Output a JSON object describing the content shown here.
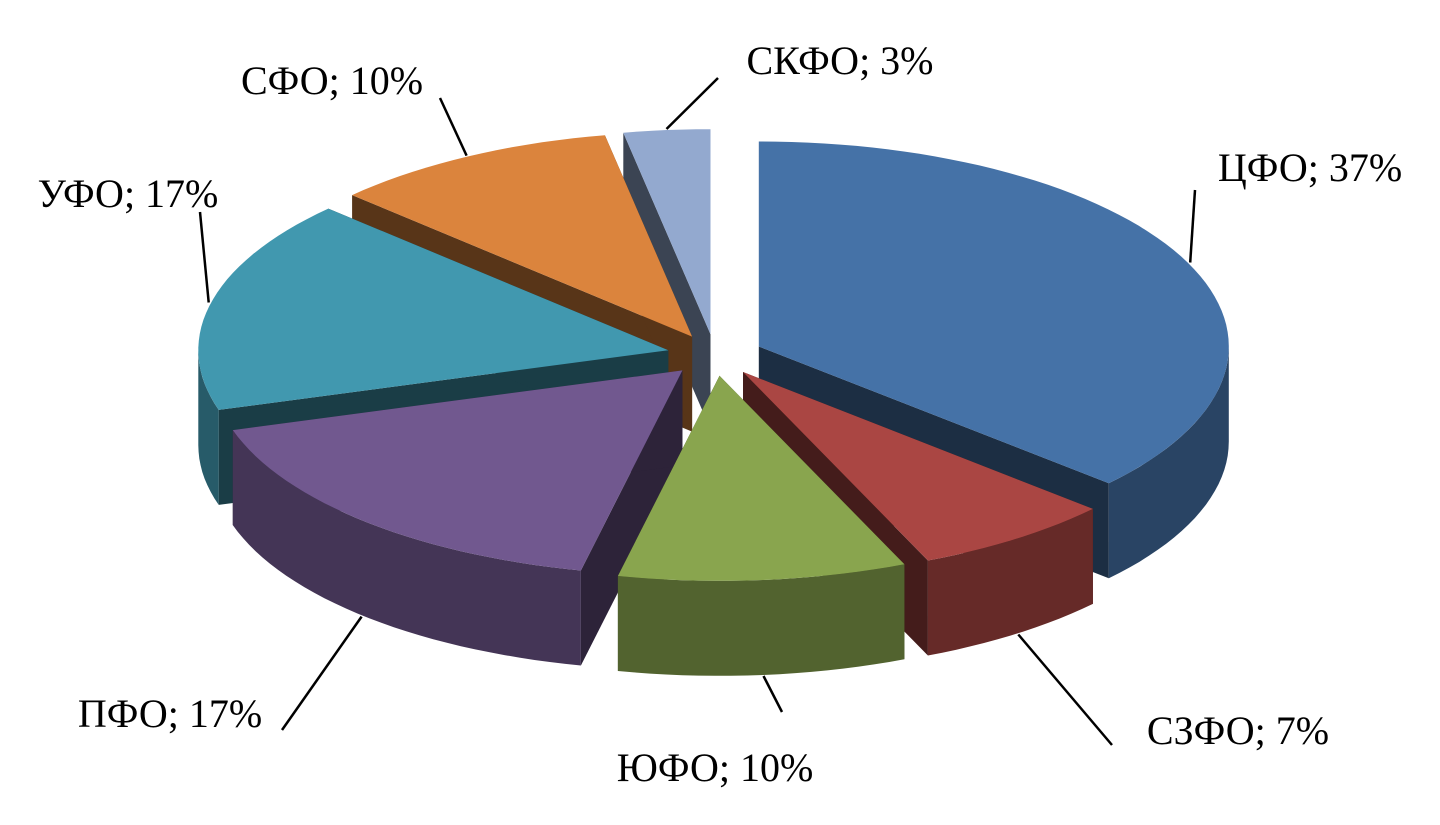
{
  "chart_data": {
    "type": "pie3d",
    "categories": [
      "ЦФО",
      "СЗФО",
      "ЮФО",
      "ПФО",
      "УФО",
      "СФО",
      "СКФО"
    ],
    "values": [
      37,
      7,
      10,
      17,
      17,
      10,
      3
    ],
    "value_labels": [
      "ЦФО; 37%",
      "СЗФО; 7%",
      "ЮФО; 10%",
      "ПФО; 17%",
      "УФО; 17%",
      "СФО; 10%",
      "СКФО; 3%"
    ],
    "colors": [
      "#4572a7",
      "#aa4643",
      "#89a54e",
      "#71588f",
      "#4198af",
      "#db843d",
      "#93a9cf"
    ]
  }
}
